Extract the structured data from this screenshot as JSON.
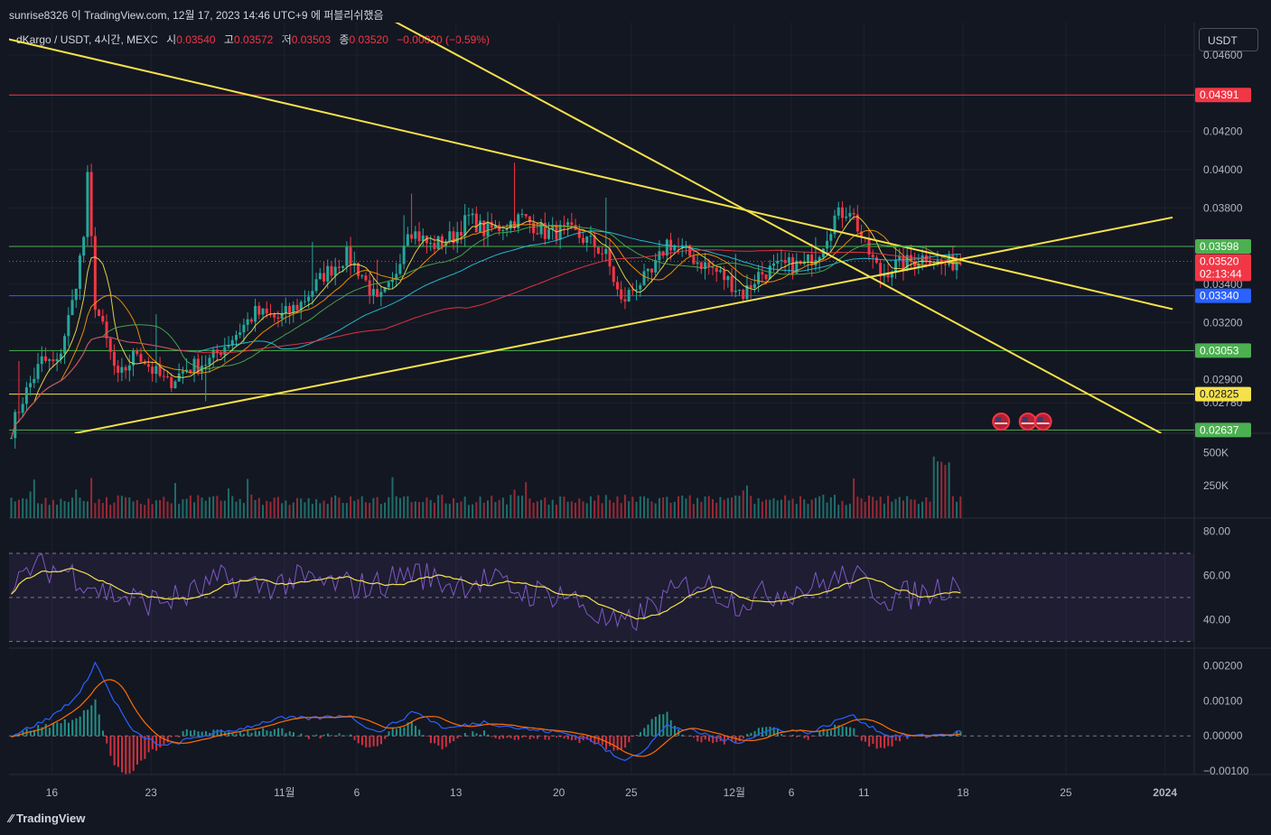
{
  "header": {
    "watermark": "sunrise8326 이 TradingView.com, 12월 17, 2023 14:46 UTC+9 에 퍼블리쉬했음"
  },
  "legend": {
    "symbol": "dKargo / USDT, 4시간, MEXC",
    "open_label": "시",
    "open": "0.03540",
    "high_label": "고",
    "high": "0.03572",
    "low_label": "저",
    "low": "0.03503",
    "close_label": "종",
    "close": "0.03520",
    "change": "−0.00020 (−0.59%)"
  },
  "currency_button": "USDT",
  "footer": {
    "logo": "TradingView"
  },
  "colors": {
    "background": "#131722",
    "up": "#26a69a",
    "down": "#f23645",
    "trend": "#f5e14a",
    "rsi": "#7e57c2",
    "rsi_ma": "#f5e14a",
    "macd": "#2962ff",
    "signal": "#ff6d00"
  },
  "chart_data": [
    {
      "type": "candlestick",
      "title": "dKargo / USDT, 4시간, MEXC",
      "x_ticks": [
        "16",
        "23",
        "11월",
        "6",
        "13",
        "20",
        "25",
        "12월",
        "6",
        "11",
        "18",
        "25",
        "2024"
      ],
      "y_ticks": [
        "0.04600",
        "0.04200",
        "0.04000",
        "0.03800",
        "0.03400",
        "0.03200",
        "0.02900",
        "0.02780"
      ],
      "ylim": [
        0.0262,
        0.0477
      ],
      "price_badges": [
        {
          "label": "0.04391",
          "price": 0.04391,
          "color": "#f23645"
        },
        {
          "label": "0.03598",
          "price": 0.03598,
          "color": "#4caf50"
        },
        {
          "label": "0.03520",
          "price": 0.0352,
          "color": "#f23645",
          "countdown": "02:13:44"
        },
        {
          "label": "0.03340",
          "price": 0.0334,
          "color": "#2962ff"
        },
        {
          "label": "0.03053",
          "price": 0.03053,
          "color": "#4caf50"
        },
        {
          "label": "0.02825",
          "price": 0.02825,
          "color": "#f5e14a"
        },
        {
          "label": "0.02637",
          "price": 0.02637,
          "color": "#4caf50"
        }
      ],
      "close_series_keypoints": [
        [
          0,
          0.0264
        ],
        [
          3,
          0.028
        ],
        [
          8,
          0.03
        ],
        [
          12,
          0.0298
        ],
        [
          16,
          0.033
        ],
        [
          19,
          0.0365
        ],
        [
          20,
          0.0395
        ],
        [
          22,
          0.033
        ],
        [
          25,
          0.031
        ],
        [
          28,
          0.029
        ],
        [
          33,
          0.0305
        ],
        [
          37,
          0.0295
        ],
        [
          41,
          0.0288
        ],
        [
          46,
          0.0296
        ],
        [
          52,
          0.03
        ],
        [
          58,
          0.0312
        ],
        [
          64,
          0.0325
        ],
        [
          70,
          0.0322
        ],
        [
          76,
          0.033
        ],
        [
          82,
          0.0345
        ],
        [
          88,
          0.0355
        ],
        [
          92,
          0.0345
        ],
        [
          96,
          0.033
        ],
        [
          100,
          0.034
        ],
        [
          104,
          0.037
        ],
        [
          110,
          0.036
        ],
        [
          116,
          0.0365
        ],
        [
          120,
          0.0375
        ],
        [
          124,
          0.0368
        ],
        [
          128,
          0.037
        ],
        [
          134,
          0.0375
        ],
        [
          140,
          0.0367
        ],
        [
          146,
          0.0368
        ],
        [
          152,
          0.0362
        ],
        [
          156,
          0.0355
        ],
        [
          160,
          0.033
        ],
        [
          164,
          0.034
        ],
        [
          168,
          0.0345
        ],
        [
          172,
          0.0362
        ],
        [
          176,
          0.0358
        ],
        [
          180,
          0.0352
        ],
        [
          184,
          0.0348
        ],
        [
          188,
          0.0342
        ],
        [
          192,
          0.0335
        ],
        [
          196,
          0.0345
        ],
        [
          200,
          0.0348
        ],
        [
          204,
          0.035
        ],
        [
          208,
          0.035
        ],
        [
          212,
          0.0358
        ],
        [
          216,
          0.0375
        ],
        [
          220,
          0.038
        ],
        [
          224,
          0.036
        ],
        [
          228,
          0.0345
        ],
        [
          232,
          0.035
        ],
        [
          236,
          0.0352
        ],
        [
          240,
          0.0355
        ],
        [
          244,
          0.035
        ],
        [
          249,
          0.0352
        ]
      ],
      "bars_total": 250,
      "trendlines": [
        {
          "p1": [
            -30,
            0.0482
          ],
          "p2": [
            305,
            0.0327
          ]
        },
        {
          "p1": [
            17,
            0.0262
          ],
          "p2": [
            305,
            0.0375
          ]
        },
        {
          "p1": [
            80,
            0.05
          ],
          "p2": [
            302,
            0.0262
          ]
        }
      ],
      "range_box": {
        "x1": 230,
        "x2": 248,
        "price": 0.03598
      },
      "event_markers": [
        {
          "bar": 260
        },
        {
          "bar": 267
        },
        {
          "bar": 271
        }
      ]
    },
    {
      "type": "bar",
      "title": "Volume",
      "y_ticks": [
        "500K",
        "250K"
      ],
      "ylim": [
        0,
        650000
      ]
    },
    {
      "type": "line",
      "title": "RSI",
      "y_ticks": [
        "80.00",
        "60.00",
        "40.00"
      ],
      "ylim": [
        27,
        86
      ],
      "bands": [
        70,
        50,
        30
      ],
      "keypoints": [
        [
          0,
          50
        ],
        [
          5,
          64
        ],
        [
          15,
          62
        ],
        [
          25,
          52
        ],
        [
          35,
          48
        ],
        [
          45,
          50
        ],
        [
          55,
          58
        ],
        [
          65,
          55
        ],
        [
          75,
          58
        ],
        [
          85,
          56
        ],
        [
          95,
          55
        ],
        [
          105,
          62
        ],
        [
          115,
          56
        ],
        [
          125,
          58
        ],
        [
          135,
          52
        ],
        [
          145,
          52
        ],
        [
          155,
          40
        ],
        [
          160,
          36
        ],
        [
          170,
          48
        ],
        [
          180,
          58
        ],
        [
          190,
          48
        ],
        [
          200,
          52
        ],
        [
          210,
          55
        ],
        [
          220,
          60
        ],
        [
          230,
          50
        ],
        [
          240,
          52
        ],
        [
          249,
          58
        ]
      ]
    },
    {
      "type": "line",
      "title": "MACD",
      "y_ticks": [
        "0.00200",
        "0.00100",
        "0.00000",
        "−0.00100"
      ],
      "ylim": [
        -0.0011,
        0.0025
      ],
      "keypoints": [
        [
          0,
          0.0
        ],
        [
          10,
          0.0005
        ],
        [
          18,
          0.0012
        ],
        [
          22,
          0.0021
        ],
        [
          26,
          0.0012
        ],
        [
          32,
          0.0001
        ],
        [
          40,
          -0.0003
        ],
        [
          50,
          0.0
        ],
        [
          60,
          0.0002
        ],
        [
          70,
          0.0005
        ],
        [
          80,
          0.0005
        ],
        [
          88,
          0.0006
        ],
        [
          96,
          0.0001
        ],
        [
          106,
          0.0007
        ],
        [
          114,
          0.0002
        ],
        [
          124,
          0.0004
        ],
        [
          134,
          0.0002
        ],
        [
          144,
          0.0001
        ],
        [
          152,
          -0.0001
        ],
        [
          160,
          -0.0007
        ],
        [
          166,
          -0.0004
        ],
        [
          172,
          0.0003
        ],
        [
          180,
          0.0001
        ],
        [
          190,
          -0.0002
        ],
        [
          200,
          0.0002
        ],
        [
          210,
          0.0001
        ],
        [
          220,
          0.0006
        ],
        [
          230,
          0.0
        ],
        [
          240,
          0.0
        ],
        [
          249,
          0.0001
        ]
      ]
    }
  ]
}
